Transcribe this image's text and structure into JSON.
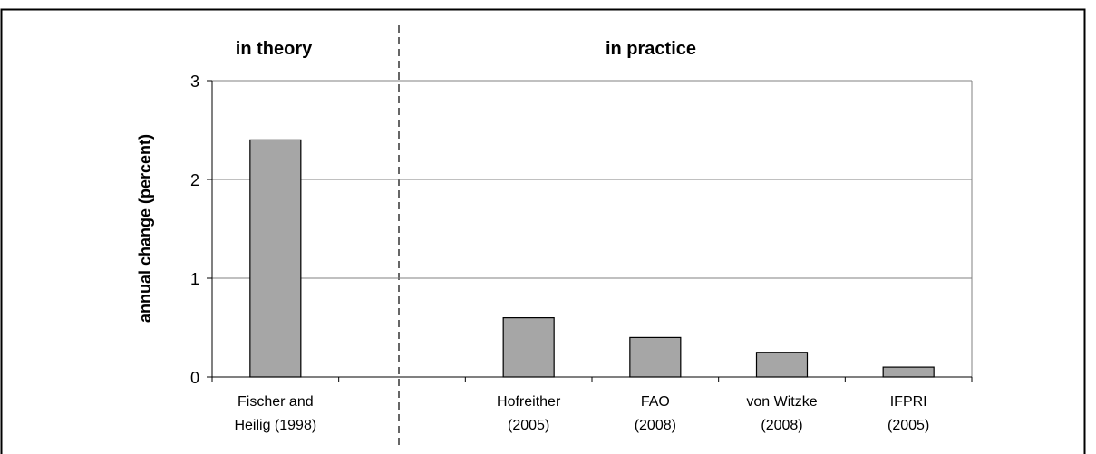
{
  "chart_data": {
    "type": "bar",
    "annotations": [
      "in theory",
      "in practice"
    ],
    "ylabel": "annual change (percent)",
    "categories": [
      "Fischer and\nHeilig (1998)",
      null,
      "Hofreither\n(2005)",
      "FAO\n(2008)",
      "von Witzke\n(2008)",
      "IFPRI\n(2005)"
    ],
    "values": [
      2.4,
      null,
      0.6,
      0.4,
      0.25,
      0.1
    ],
    "color": "#a6a6a6",
    "ylim": [
      0,
      3
    ],
    "yticks": [
      0,
      1,
      2,
      3
    ],
    "grid": true
  }
}
